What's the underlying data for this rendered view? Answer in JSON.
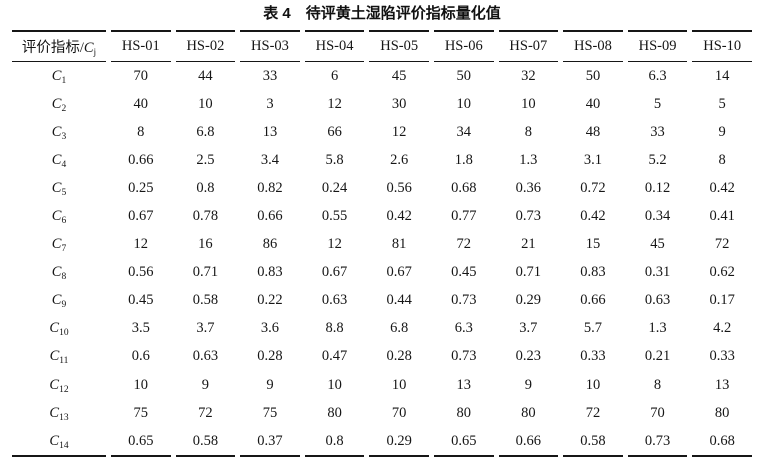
{
  "page": {
    "title": "表 4　待评黄土湿陷评价指标量化值"
  },
  "table": {
    "header": {
      "indicator_label": "评价指标/",
      "indicator_symbol": "C",
      "indicator_sub": "j",
      "columns": [
        "HS-01",
        "HS-02",
        "HS-03",
        "HS-04",
        "HS-05",
        "HS-06",
        "HS-07",
        "HS-08",
        "HS-09",
        "HS-10"
      ]
    },
    "rows": [
      {
        "symbol": "C",
        "sub": "1",
        "values": [
          "70",
          "44",
          "33",
          "6",
          "45",
          "50",
          "32",
          "50",
          "6.3",
          "14"
        ]
      },
      {
        "symbol": "C",
        "sub": "2",
        "values": [
          "40",
          "10",
          "3",
          "12",
          "30",
          "10",
          "10",
          "40",
          "5",
          "5"
        ]
      },
      {
        "symbol": "C",
        "sub": "3",
        "values": [
          "8",
          "6.8",
          "13",
          "66",
          "12",
          "34",
          "8",
          "48",
          "33",
          "9"
        ]
      },
      {
        "symbol": "C",
        "sub": "4",
        "values": [
          "0.66",
          "2.5",
          "3.4",
          "5.8",
          "2.6",
          "1.8",
          "1.3",
          "3.1",
          "5.2",
          "8"
        ]
      },
      {
        "symbol": "C",
        "sub": "5",
        "values": [
          "0.25",
          "0.8",
          "0.82",
          "0.24",
          "0.56",
          "0.68",
          "0.36",
          "0.72",
          "0.12",
          "0.42"
        ]
      },
      {
        "symbol": "C",
        "sub": "6",
        "values": [
          "0.67",
          "0.78",
          "0.66",
          "0.55",
          "0.42",
          "0.77",
          "0.73",
          "0.42",
          "0.34",
          "0.41"
        ]
      },
      {
        "symbol": "C",
        "sub": "7",
        "values": [
          "12",
          "16",
          "86",
          "12",
          "81",
          "72",
          "21",
          "15",
          "45",
          "72"
        ]
      },
      {
        "symbol": "C",
        "sub": "8",
        "values": [
          "0.56",
          "0.71",
          "0.83",
          "0.67",
          "0.67",
          "0.45",
          "0.71",
          "0.83",
          "0.31",
          "0.62"
        ]
      },
      {
        "symbol": "C",
        "sub": "9",
        "values": [
          "0.45",
          "0.58",
          "0.22",
          "0.63",
          "0.44",
          "0.73",
          "0.29",
          "0.66",
          "0.63",
          "0.17"
        ]
      },
      {
        "symbol": "C",
        "sub": "10",
        "values": [
          "3.5",
          "3.7",
          "3.6",
          "8.8",
          "6.8",
          "6.3",
          "3.7",
          "5.7",
          "1.3",
          "4.2"
        ]
      },
      {
        "symbol": "C",
        "sub": "11",
        "values": [
          "0.6",
          "0.63",
          "0.28",
          "0.47",
          "0.28",
          "0.73",
          "0.23",
          "0.33",
          "0.21",
          "0.33"
        ]
      },
      {
        "symbol": "C",
        "sub": "12",
        "values": [
          "10",
          "9",
          "9",
          "10",
          "10",
          "13",
          "9",
          "10",
          "8",
          "13"
        ]
      },
      {
        "symbol": "C",
        "sub": "13",
        "values": [
          "75",
          "72",
          "75",
          "80",
          "70",
          "80",
          "80",
          "72",
          "70",
          "80"
        ]
      },
      {
        "symbol": "C",
        "sub": "14",
        "values": [
          "0.65",
          "0.58",
          "0.37",
          "0.8",
          "0.29",
          "0.65",
          "0.66",
          "0.58",
          "0.73",
          "0.68"
        ]
      }
    ]
  }
}
